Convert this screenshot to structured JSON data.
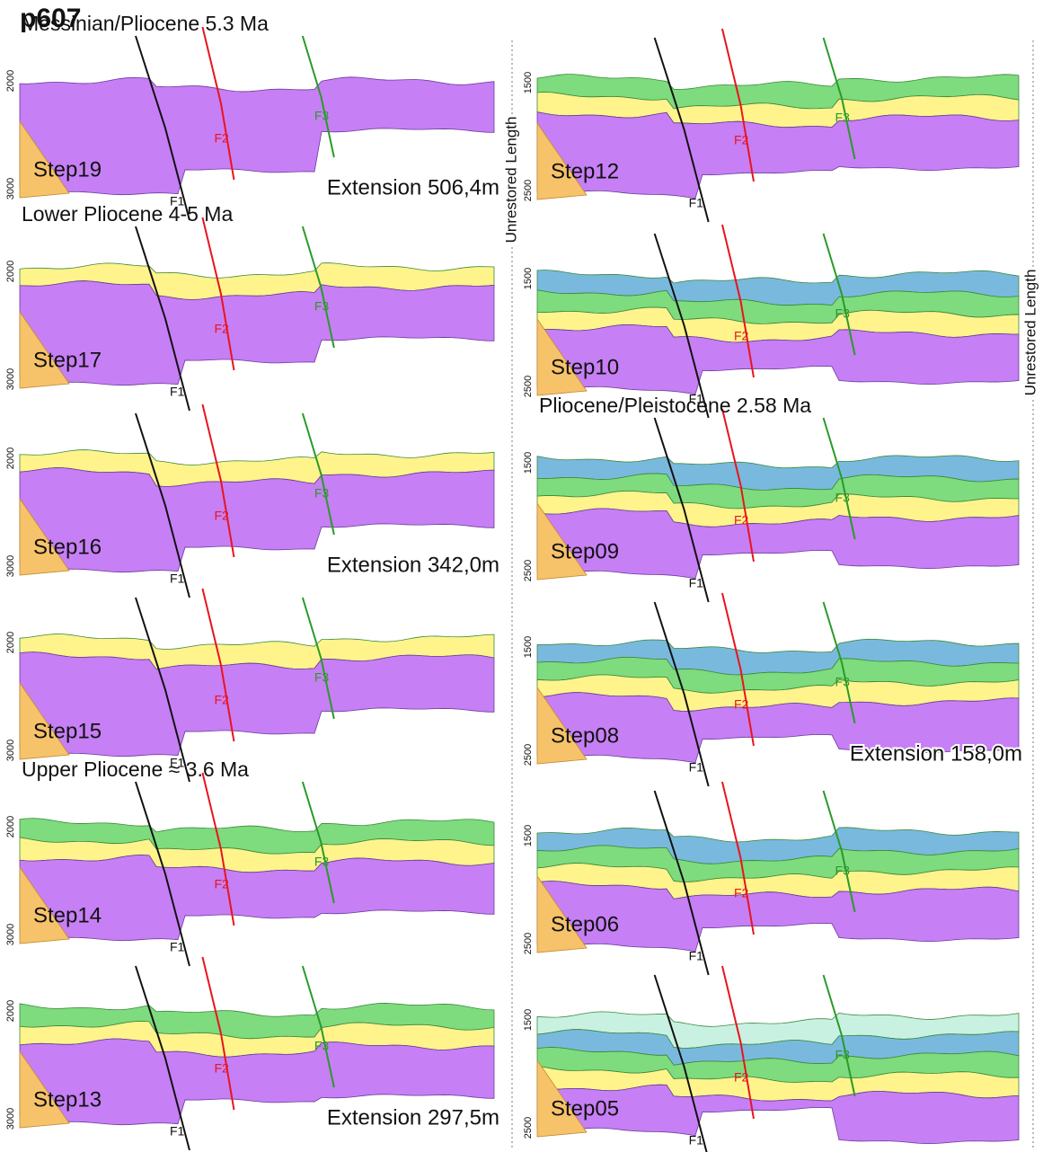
{
  "title": "p607",
  "fault_labels": [
    "F1",
    "F2",
    "F3"
  ],
  "fault_colors": [
    "#111111",
    "#e8141e",
    "#2a9a2a"
  ],
  "base_color": "#c77ff5",
  "wedge_color": "#f7c36a",
  "side_labels": [
    "Unrestored Length",
    "Unrestored Length"
  ],
  "columns": [
    {
      "depth_labels": [
        2000,
        3000
      ],
      "panels": [
        {
          "header": "Messinian/Pliocene 5.3 Ma",
          "step": "Step19",
          "extension": "Extension 506,4m",
          "layers": []
        },
        {
          "header": "Lower Pliocene 4-5 Ma",
          "step": "Step17",
          "layers": [
            "#fff38c"
          ]
        },
        {
          "step": "Step16",
          "extension": "Extension 342,0m",
          "layers": [
            "#fff38c"
          ]
        },
        {
          "step": "Step15",
          "layers": [
            "#fff38c"
          ]
        },
        {
          "header": "Upper Pliocene ≈ 3.6 Ma",
          "step": "Step14",
          "layers": [
            "#7edb7e",
            "#fff38c"
          ]
        },
        {
          "step": "Step13",
          "extension": "Extension 297,5m",
          "layers": [
            "#7edb7e",
            "#fff38c"
          ]
        }
      ]
    },
    {
      "depth_labels": [
        1500,
        2500
      ],
      "panels": [
        {
          "step": "Step12",
          "layers": [
            "#7edb7e",
            "#fff38c"
          ]
        },
        {
          "step": "Step10",
          "layers": [
            "#7ab9de",
            "#7edb7e",
            "#fff38c"
          ]
        },
        {
          "header": "Pliocene/Pleistocene 2.58 Ma",
          "step": "Step09",
          "layers": [
            "#7ab9de",
            "#7edb7e",
            "#fff38c"
          ]
        },
        {
          "step": "Step08",
          "extension": "Extension 158,0m",
          "layers": [
            "#7ab9de",
            "#7edb7e",
            "#fff38c"
          ]
        },
        {
          "step": "Step06",
          "layers": [
            "#7ab9de",
            "#7edb7e",
            "#fff38c"
          ]
        },
        {
          "step": "Step05",
          "layers": [
            "#c9f1e2",
            "#7ab9de",
            "#7edb7e",
            "#fff38c"
          ]
        }
      ]
    }
  ]
}
